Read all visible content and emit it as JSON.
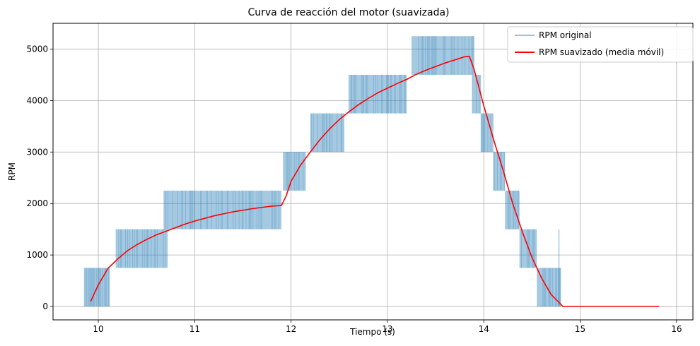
{
  "chart_data": {
    "type": "line",
    "title": "Curva de reacción del motor (suavizada)",
    "xlabel": "Tiempo (s)",
    "ylabel": "RPM",
    "xlim": [
      9.53,
      16.17
    ],
    "ylim": [
      -260,
      5500
    ],
    "xticks": [
      10,
      11,
      12,
      13,
      14,
      15,
      16
    ],
    "yticks": [
      0,
      1000,
      2000,
      3000,
      4000,
      5000
    ],
    "grid": true,
    "legend_position": "top-right",
    "colors": {
      "original": "#1f77b4",
      "smoothed": "#ff0000"
    },
    "series": [
      {
        "name": "RPM original",
        "style": "noisy-band",
        "segments": [
          {
            "x_start": 9.85,
            "x_end": 10.12,
            "low": 0,
            "high": 750
          },
          {
            "x_start": 10.18,
            "x_end": 10.72,
            "low": 750,
            "high": 1500
          },
          {
            "x_start": 10.68,
            "x_end": 11.9,
            "low": 1500,
            "high": 2250
          },
          {
            "x_start": 11.92,
            "x_end": 12.15,
            "low": 2250,
            "high": 3000
          },
          {
            "x_start": 12.2,
            "x_end": 12.55,
            "low": 3000,
            "high": 3750
          },
          {
            "x_start": 12.6,
            "x_end": 13.2,
            "low": 3750,
            "high": 4500
          },
          {
            "x_start": 13.25,
            "x_end": 13.9,
            "low": 4500,
            "high": 5250
          },
          {
            "x_start": 13.88,
            "x_end": 13.97,
            "low": 3750,
            "high": 4500
          },
          {
            "x_start": 13.97,
            "x_end": 14.1,
            "low": 3000,
            "high": 3750
          },
          {
            "x_start": 14.1,
            "x_end": 14.22,
            "low": 2250,
            "high": 3000
          },
          {
            "x_start": 14.22,
            "x_end": 14.37,
            "low": 1500,
            "high": 2250
          },
          {
            "x_start": 14.37,
            "x_end": 14.55,
            "low": 750,
            "high": 1500
          },
          {
            "x_start": 14.55,
            "x_end": 14.8,
            "low": 0,
            "high": 750
          }
        ],
        "spikes": [
          {
            "x": 14.78,
            "y": 1500
          },
          {
            "x": 15.83,
            "y": 0
          }
        ]
      },
      {
        "name": "RPM suavizado (media móvil)",
        "x": [
          9.92,
          10.0,
          10.1,
          10.2,
          10.3,
          10.4,
          10.5,
          10.6,
          10.7,
          10.8,
          10.9,
          11.0,
          11.2,
          11.4,
          11.6,
          11.8,
          11.9,
          11.95,
          12.0,
          12.1,
          12.2,
          12.3,
          12.4,
          12.5,
          12.6,
          12.7,
          12.8,
          12.9,
          13.0,
          13.1,
          13.2,
          13.3,
          13.4,
          13.5,
          13.6,
          13.7,
          13.8,
          13.85,
          13.9,
          13.95,
          14.0,
          14.1,
          14.2,
          14.3,
          14.4,
          14.5,
          14.6,
          14.7,
          14.78,
          14.82,
          15.0,
          15.5,
          15.82
        ],
        "y": [
          100,
          420,
          740,
          920,
          1080,
          1200,
          1300,
          1390,
          1460,
          1530,
          1600,
          1660,
          1760,
          1840,
          1900,
          1950,
          1960,
          2150,
          2430,
          2750,
          3000,
          3240,
          3450,
          3630,
          3780,
          3920,
          4040,
          4150,
          4240,
          4330,
          4410,
          4510,
          4590,
          4660,
          4730,
          4790,
          4850,
          4860,
          4600,
          4250,
          3900,
          3250,
          2650,
          2000,
          1450,
          950,
          550,
          230,
          80,
          0,
          0,
          0,
          0
        ]
      }
    ]
  }
}
